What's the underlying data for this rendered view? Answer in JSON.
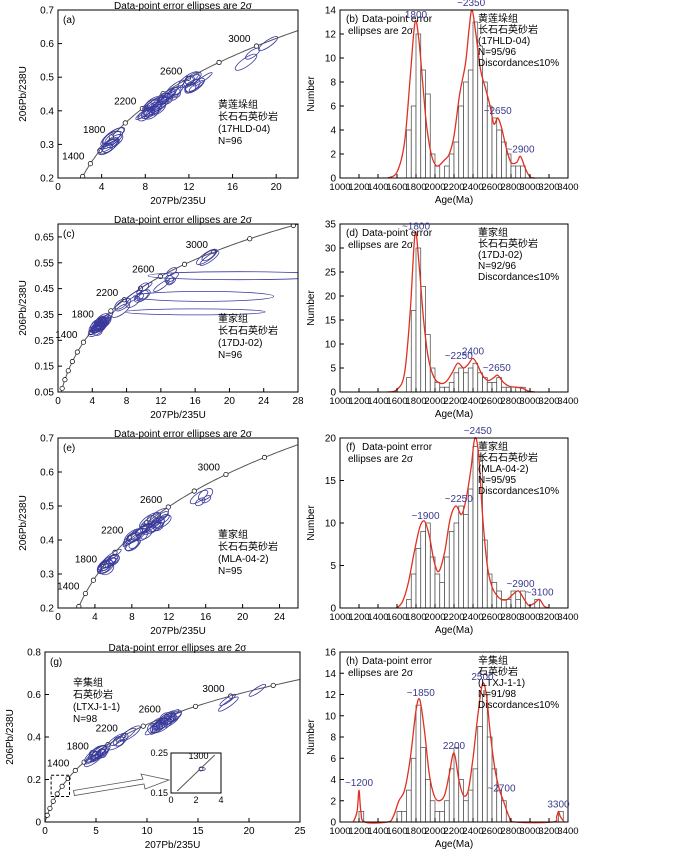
{
  "figure": {
    "conc_ylabel": "206Pb/238U",
    "conc_xlabel": "207Pb/235U",
    "hist_ylabel": "Number",
    "hist_xlabel": "Age(Ma)",
    "ellipse_note_line1": "Data-point error ellipses are 2σ",
    "hist_note_line1": "Data-point error",
    "hist_note_line2": "ellipses are 2σ"
  },
  "colors": {
    "ellipse": "#3a3a9c",
    "kde": "#e03020",
    "text": "#000000",
    "axis": "#000000",
    "age_label": "#3a3a8c",
    "concordia": "#555555"
  },
  "chart_data": [
    {
      "type": "scatter",
      "panel": "(a)",
      "title": "Data-point error ellipses are 2σ",
      "xlim": [
        0,
        22
      ],
      "ylim": [
        0.2,
        0.7
      ],
      "xticks": [
        0,
        4,
        8,
        12,
        16,
        20
      ],
      "yticks": [
        0.2,
        0.3,
        0.4,
        0.5,
        0.6,
        0.7
      ],
      "concordia_labels": [
        1400,
        1800,
        2200,
        2600,
        3000
      ],
      "info": [
        "黄莲垛组",
        "长石石英砂岩",
        "(17HLD-04)",
        "N=96"
      ],
      "clusters": [
        {
          "age": 1800,
          "n": 10,
          "spread": 60
        },
        {
          "age": 2350,
          "n": 30,
          "spread": 160
        },
        {
          "age": 2650,
          "n": 10,
          "spread": 80
        },
        {
          "age": 3000,
          "n": 3,
          "spread": 60
        }
      ]
    },
    {
      "type": "bar",
      "panel": "(b)",
      "title": "Data-point error ellipses are 2σ",
      "xlim": [
        1000,
        3400
      ],
      "ylim": [
        0,
        14
      ],
      "xticks": [
        1000,
        1200,
        1400,
        1600,
        1800,
        2000,
        2200,
        2400,
        2600,
        2800,
        3000,
        3200,
        3400
      ],
      "yticks": [
        0,
        2,
        4,
        6,
        8,
        10,
        12,
        14
      ],
      "info": [
        "黄莲垛组",
        "长石石英砂岩",
        "(17HLD-04)",
        "N=95/96",
        "Discordance≤10%"
      ],
      "peaks": [
        {
          "label": "1800",
          "age": 1800,
          "value": 13.0
        },
        {
          "label": "~2350",
          "age": 2380,
          "value": 14.0
        },
        {
          "label": "~2650",
          "age": 2660,
          "value": 5.0
        },
        {
          "label": "~2900",
          "age": 2900,
          "value": 1.8
        }
      ],
      "bins": [
        1700,
        1750,
        1800,
        1850,
        1900,
        1950,
        2000,
        2050,
        2100,
        2150,
        2200,
        2250,
        2300,
        2350,
        2400,
        2450,
        2500,
        2550,
        2600,
        2650,
        2700,
        2750,
        2800,
        2850,
        2900
      ],
      "counts": [
        4,
        6,
        12,
        9,
        7,
        2,
        1,
        0,
        1,
        2,
        3,
        6,
        8,
        9,
        13,
        11,
        8,
        6,
        5,
        4,
        3,
        2,
        1,
        1,
        1
      ],
      "kde": [
        [
          1500,
          0
        ],
        [
          1600,
          0.5
        ],
        [
          1680,
          3.0
        ],
        [
          1740,
          8.5
        ],
        [
          1790,
          13.0
        ],
        [
          1830,
          11.5
        ],
        [
          1870,
          8.0
        ],
        [
          1910,
          4.5
        ],
        [
          1960,
          2.0
        ],
        [
          2020,
          1.0
        ],
        [
          2100,
          1.5
        ],
        [
          2150,
          2.0
        ],
        [
          2200,
          3.5
        ],
        [
          2260,
          7.0
        ],
        [
          2320,
          9.5
        ],
        [
          2360,
          12.5
        ],
        [
          2390,
          14.0
        ],
        [
          2430,
          12.0
        ],
        [
          2480,
          9.0
        ],
        [
          2530,
          7.5
        ],
        [
          2580,
          6.0
        ],
        [
          2620,
          4.5
        ],
        [
          2660,
          5.0
        ],
        [
          2700,
          4.2
        ],
        [
          2750,
          2.5
        ],
        [
          2800,
          1.3
        ],
        [
          2860,
          1.3
        ],
        [
          2900,
          1.8
        ],
        [
          2950,
          0.8
        ],
        [
          3000,
          0.1
        ],
        [
          3050,
          0
        ]
      ]
    },
    {
      "type": "scatter",
      "panel": "(c)",
      "title": "Data-point error ellipses are 2σ",
      "xlim": [
        0,
        28
      ],
      "ylim": [
        0.05,
        0.7
      ],
      "xticks": [
        0,
        4,
        8,
        12,
        16,
        20,
        24,
        28
      ],
      "yticks": [
        0.05,
        0.15,
        0.25,
        0.35,
        0.45,
        0.55,
        0.65
      ],
      "concordia_labels": [
        1400,
        1800,
        2200,
        2600,
        3000
      ],
      "info": [
        "董家组",
        "长石石英砂岩",
        "(17DJ-02)",
        "N=96"
      ],
      "clusters": [
        {
          "age": 1800,
          "n": 25,
          "spread": 60
        },
        {
          "age": 2300,
          "n": 10,
          "spread": 150
        },
        {
          "age": 2650,
          "n": 5,
          "spread": 60
        },
        {
          "age": 3000,
          "n": 3,
          "spread": 60
        }
      ]
    },
    {
      "type": "bar",
      "panel": "(d)",
      "title": "Data-point error ellipses are 2σ",
      "xlim": [
        1000,
        3400
      ],
      "ylim": [
        0,
        35
      ],
      "xticks": [
        1000,
        1200,
        1400,
        1600,
        1800,
        2000,
        2200,
        2400,
        2600,
        2800,
        3000,
        3200,
        3400
      ],
      "yticks": [
        0,
        5,
        10,
        15,
        20,
        25,
        30,
        35
      ],
      "info": [
        "董家组",
        "长石石英砂岩",
        "(17DJ-02)",
        "N=92/96",
        "Discordance≤10%"
      ],
      "peaks": [
        {
          "label": "~1800",
          "age": 1800,
          "value": 33.0
        },
        {
          "label": "~2250",
          "age": 2250,
          "value": 6.0
        },
        {
          "label": "2400",
          "age": 2400,
          "value": 7.0
        },
        {
          "label": "~2650",
          "age": 2650,
          "value": 3.5
        }
      ],
      "bins": [
        1700,
        1750,
        1800,
        1850,
        1900,
        1950,
        2000,
        2050,
        2100,
        2150,
        2200,
        2250,
        2300,
        2350,
        2400,
        2450,
        2500,
        2550,
        2600,
        2650,
        2700,
        2750,
        2800,
        2850,
        2900
      ],
      "counts": [
        3,
        17,
        30,
        22,
        12,
        5,
        2,
        1,
        1,
        2,
        4,
        5,
        4,
        5,
        6,
        4,
        3,
        2,
        2,
        3,
        1,
        1,
        1,
        1,
        1
      ],
      "kde": [
        [
          1500,
          0
        ],
        [
          1600,
          0.5
        ],
        [
          1680,
          4.0
        ],
        [
          1740,
          17.0
        ],
        [
          1790,
          33.0
        ],
        [
          1830,
          27.0
        ],
        [
          1880,
          15.0
        ],
        [
          1930,
          7.0
        ],
        [
          1990,
          3.0
        ],
        [
          2060,
          1.8
        ],
        [
          2120,
          2.2
        ],
        [
          2180,
          4.0
        ],
        [
          2240,
          6.0
        ],
        [
          2300,
          5.0
        ],
        [
          2350,
          5.8
        ],
        [
          2400,
          7.0
        ],
        [
          2450,
          5.5
        ],
        [
          2500,
          3.5
        ],
        [
          2560,
          2.4
        ],
        [
          2620,
          3.0
        ],
        [
          2660,
          3.5
        ],
        [
          2720,
          2.0
        ],
        [
          2780,
          1.2
        ],
        [
          2850,
          1.0
        ],
        [
          2920,
          0.8
        ],
        [
          2980,
          0.2
        ],
        [
          3050,
          0
        ]
      ]
    },
    {
      "type": "scatter",
      "panel": "(e)",
      "title": "Data-point error ellipses are 2σ",
      "xlim": [
        0,
        26
      ],
      "ylim": [
        0.2,
        0.7
      ],
      "xticks": [
        0,
        4,
        8,
        12,
        16,
        20,
        24
      ],
      "yticks": [
        0.2,
        0.3,
        0.4,
        0.5,
        0.6,
        0.7
      ],
      "concordia_labels": [
        1400,
        1800,
        2200,
        2600,
        3000
      ],
      "info": [
        "董家组",
        "长石石英砂岩",
        "(MLA-04-2)",
        "N=95"
      ],
      "clusters": [
        {
          "age": 1900,
          "n": 12,
          "spread": 80
        },
        {
          "age": 2300,
          "n": 15,
          "spread": 120
        },
        {
          "age": 2500,
          "n": 15,
          "spread": 80
        },
        {
          "age": 2900,
          "n": 4,
          "spread": 80
        }
      ]
    },
    {
      "type": "bar",
      "panel": "(f)",
      "title": "Data-point error ellipses are 2σ",
      "xlim": [
        1000,
        3400
      ],
      "ylim": [
        0,
        20
      ],
      "xticks": [
        1000,
        1200,
        1400,
        1600,
        1800,
        2000,
        2200,
        2400,
        2600,
        2800,
        3000,
        3200,
        3400
      ],
      "yticks": [
        0,
        5,
        10,
        15,
        20
      ],
      "info": [
        "董家组",
        "长石石英砂岩",
        "(MLA-04-2)",
        "N=95/95",
        "Discordance≤10%"
      ],
      "peaks": [
        {
          "label": "~1900",
          "age": 1900,
          "value": 10.0
        },
        {
          "label": "~2250",
          "age": 2250,
          "value": 12.0
        },
        {
          "label": "~2450",
          "age": 2450,
          "value": 20.0
        },
        {
          "label": "~2900",
          "age": 2900,
          "value": 2.0
        },
        {
          "label": "~3100",
          "age": 3100,
          "value": 1.0
        }
      ],
      "bins": [
        1700,
        1750,
        1800,
        1850,
        1900,
        1950,
        2000,
        2050,
        2100,
        2150,
        2200,
        2250,
        2300,
        2350,
        2400,
        2450,
        2500,
        2550,
        2600,
        2650,
        2700,
        2750,
        2800,
        2850,
        2900,
        3050
      ],
      "counts": [
        1,
        4,
        7,
        9,
        10,
        6,
        4,
        3,
        6,
        9,
        10,
        12,
        11,
        14,
        19,
        18,
        8,
        4,
        3,
        2,
        1,
        1,
        2,
        1,
        2,
        1
      ],
      "kde": [
        [
          1600,
          0
        ],
        [
          1660,
          0.8
        ],
        [
          1720,
          3.0
        ],
        [
          1780,
          6.5
        ],
        [
          1840,
          9.5
        ],
        [
          1890,
          10.2
        ],
        [
          1940,
          8.5
        ],
        [
          1990,
          5.5
        ],
        [
          2040,
          4.3
        ],
        [
          2100,
          6.5
        ],
        [
          2160,
          10.5
        ],
        [
          2220,
          12.0
        ],
        [
          2280,
          11.0
        ],
        [
          2330,
          13.0
        ],
        [
          2380,
          16.5
        ],
        [
          2420,
          20.0
        ],
        [
          2460,
          18.0
        ],
        [
          2500,
          11.0
        ],
        [
          2550,
          5.0
        ],
        [
          2600,
          2.5
        ],
        [
          2650,
          1.5
        ],
        [
          2700,
          1.0
        ],
        [
          2760,
          1.0
        ],
        [
          2820,
          1.6
        ],
        [
          2880,
          2.0
        ],
        [
          2940,
          1.0
        ],
        [
          2990,
          0.3
        ],
        [
          3050,
          0.6
        ],
        [
          3100,
          1.0
        ],
        [
          3150,
          0.2
        ],
        [
          3200,
          0
        ]
      ]
    },
    {
      "type": "scatter",
      "panel": "(g)",
      "title": "Data-point error ellipses are 2σ",
      "xlim": [
        0,
        25
      ],
      "ylim": [
        0,
        0.8
      ],
      "xticks": [
        0,
        5,
        10,
        15,
        20,
        25
      ],
      "yticks": [
        0,
        0.2,
        0.4,
        0.6,
        0.8
      ],
      "concordia_labels": [
        1400,
        1800,
        2200,
        2600,
        3000
      ],
      "info": [
        "辛集组",
        "石英砂岩",
        "(LTXJ-1-1)",
        "N=98"
      ],
      "inset": {
        "xlim": [
          0,
          4
        ],
        "ylim": [
          0.15,
          0.25
        ],
        "xticks": [
          0,
          2,
          4
        ],
        "yticks": [
          0.15,
          0.25
        ],
        "label": "1300"
      },
      "clusters": [
        {
          "age": 1850,
          "n": 15,
          "spread": 80
        },
        {
          "age": 2200,
          "n": 6,
          "spread": 80
        },
        {
          "age": 2550,
          "n": 20,
          "spread": 100
        },
        {
          "age": 3100,
          "n": 3,
          "spread": 120
        }
      ]
    },
    {
      "type": "bar",
      "panel": "(h)",
      "title": "Data-point error ellipses are 2σ",
      "xlim": [
        1000,
        3400
      ],
      "ylim": [
        0,
        16
      ],
      "xticks": [
        1000,
        1200,
        1400,
        1600,
        1800,
        2000,
        2200,
        2400,
        2600,
        2800,
        3000,
        3200,
        3400
      ],
      "yticks": [
        0,
        2,
        4,
        6,
        8,
        10,
        12,
        14,
        16
      ],
      "info": [
        "辛集组",
        "石英砂岩",
        "(LTXJ-1-1)",
        "N=91/98",
        "Discordance≤10%"
      ],
      "peaks": [
        {
          "label": "~1200",
          "age": 1200,
          "value": 3.0
        },
        {
          "label": "~1850",
          "age": 1850,
          "value": 11.5
        },
        {
          "label": "2200",
          "age": 2200,
          "value": 6.5
        },
        {
          "label": "2500",
          "age": 2500,
          "value": 13.0
        },
        {
          "label": "~2700",
          "age": 2700,
          "value": 2.5
        },
        {
          "label": "3300",
          "age": 3300,
          "value": 1.0
        }
      ],
      "bins": [
        1200,
        1600,
        1650,
        1700,
        1750,
        1800,
        1850,
        1900,
        1950,
        2000,
        2050,
        2100,
        2150,
        2200,
        2250,
        2300,
        2350,
        2400,
        2450,
        2500,
        2550,
        2600,
        2650,
        2700,
        3300
      ],
      "counts": [
        1,
        1,
        1,
        3,
        6,
        11,
        7,
        4,
        2,
        1,
        1,
        2,
        5,
        7,
        4,
        2,
        3,
        5,
        9,
        12,
        8,
        5,
        3,
        2,
        1
      ],
      "kde": [
        [
          1140,
          0
        ],
        [
          1180,
          1.0
        ],
        [
          1200,
          3.0
        ],
        [
          1220,
          1.0
        ],
        [
          1260,
          0
        ],
        [
          1500,
          0
        ],
        [
          1560,
          0.5
        ],
        [
          1620,
          2.0
        ],
        [
          1680,
          3.0
        ],
        [
          1740,
          6.0
        ],
        [
          1800,
          10.5
        ],
        [
          1840,
          11.5
        ],
        [
          1890,
          8.5
        ],
        [
          1940,
          4.5
        ],
        [
          1990,
          2.5
        ],
        [
          2040,
          2.0
        ],
        [
          2100,
          2.5
        ],
        [
          2150,
          4.5
        ],
        [
          2200,
          6.5
        ],
        [
          2250,
          4.0
        ],
        [
          2300,
          2.5
        ],
        [
          2350,
          3.0
        ],
        [
          2400,
          6.0
        ],
        [
          2450,
          10.0
        ],
        [
          2500,
          13.0
        ],
        [
          2540,
          12.0
        ],
        [
          2580,
          8.5
        ],
        [
          2630,
          5.0
        ],
        [
          2680,
          3.0
        ],
        [
          2720,
          2.0
        ],
        [
          2780,
          0.5
        ],
        [
          2840,
          0
        ],
        [
          3240,
          0
        ],
        [
          3280,
          0.5
        ],
        [
          3300,
          1.0
        ],
        [
          3320,
          0.5
        ],
        [
          3360,
          0
        ]
      ]
    }
  ]
}
